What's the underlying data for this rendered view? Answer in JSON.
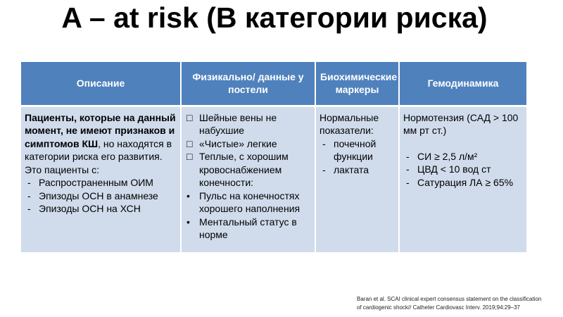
{
  "title": "A – at risk (B категории риска)",
  "table": {
    "headers": [
      "Описание",
      "Физикально/ данные у постели",
      "Биохимические маркеры",
      "Гемодинамика"
    ],
    "description": {
      "bold": "Пациенты, которые на данный момент, не имеют признаков и симптомов КШ",
      "rest": ", но находятся в категории риска его развития.",
      "intro": "Это пациенты с:",
      "items": [
        "Распространенным ОИМ",
        "Эпизоды ОСН в анамнезе",
        "Эпизоды ОСН на ХСН"
      ]
    },
    "physical": {
      "square_items": [
        "Шейные вены не набухшие",
        "«Чистые» легкие",
        "Теплые, с хорошим кровоснабжением конечности:"
      ],
      "bullet_items": [
        "Пульс на конечностях хорошего наполнения",
        "Ментальный статус в норме"
      ]
    },
    "biochem": {
      "intro": "Нормальные показатели:",
      "items": [
        "почечной функции",
        "лактата"
      ]
    },
    "hemo": {
      "intro": "Нормотензия (САД > 100 мм рт ст.)",
      "items": [
        "СИ ≥ 2,5 л/м²",
        "ЦВД < 10 вод ст",
        "Сатурация ЛА ≥ 65%"
      ]
    }
  },
  "citation": [
    "Baran et al. SCAI clinical expert consensus statement on the classification",
    "of cardiogenic shock// Catheter Cardiovasc Interv. 2019;94:29–37"
  ],
  "colors": {
    "header": "#4f81bd",
    "cell": "#d0dcec"
  }
}
